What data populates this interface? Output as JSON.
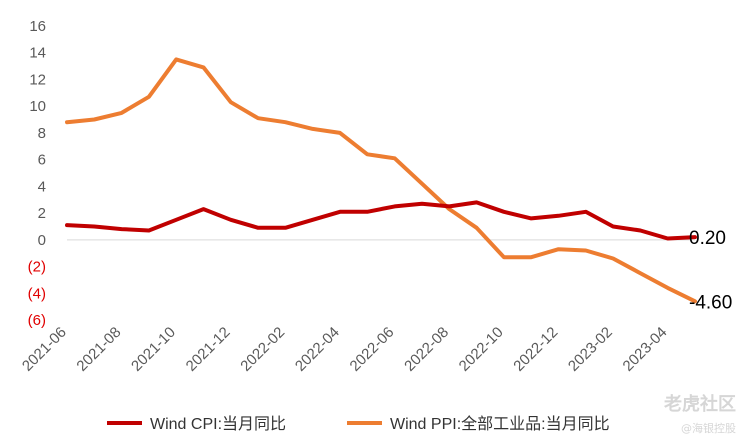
{
  "chart_data": {
    "type": "line",
    "title": "",
    "xlabel": "",
    "ylabel": "",
    "ylim": [
      -6,
      16
    ],
    "yticks": [
      16,
      14,
      12,
      10,
      8,
      6,
      4,
      2,
      0,
      -2,
      -4,
      -6
    ],
    "ytick_labels": [
      "16",
      "14",
      "12",
      "10",
      "8",
      "6",
      "4",
      "2",
      "0",
      "(2)",
      "(4)",
      "(6)"
    ],
    "negative_tick_color": "#e00000",
    "positive_tick_color": "#595959",
    "x": [
      "2021-06",
      "2021-07",
      "2021-08",
      "2021-09",
      "2021-10",
      "2021-11",
      "2021-12",
      "2022-01",
      "2022-02",
      "2022-03",
      "2022-04",
      "2022-05",
      "2022-06",
      "2022-07",
      "2022-08",
      "2022-09",
      "2022-10",
      "2022-11",
      "2022-12",
      "2023-01",
      "2023-02",
      "2023-03",
      "2023-04",
      "2023-05"
    ],
    "xtick_labels": [
      "2021-06",
      "2021-08",
      "2021-10",
      "2021-12",
      "2022-02",
      "2022-04",
      "2022-06",
      "2022-08",
      "2022-10",
      "2022-12",
      "2023-02",
      "2023-04"
    ],
    "series": [
      {
        "name": "Wind CPI:当月同比",
        "color": "#c00000",
        "values": [
          1.1,
          1.0,
          0.8,
          0.7,
          1.5,
          2.3,
          1.5,
          0.9,
          0.9,
          1.5,
          2.1,
          2.1,
          2.5,
          2.7,
          2.5,
          2.8,
          2.1,
          1.6,
          1.8,
          2.1,
          1.0,
          0.7,
          0.1,
          0.2
        ],
        "end_label": "0.20"
      },
      {
        "name": "Wind PPI:全部工业品:当月同比",
        "color": "#ed7d31",
        "values": [
          8.8,
          9.0,
          9.5,
          10.7,
          13.5,
          12.9,
          10.3,
          9.1,
          8.8,
          8.3,
          8.0,
          6.4,
          6.1,
          4.2,
          2.3,
          0.9,
          -1.3,
          -1.3,
          -0.7,
          -0.8,
          -1.4,
          -2.5,
          -3.6,
          -4.6
        ],
        "end_label": "-4.60"
      }
    ],
    "grid": false,
    "legend_position": "bottom"
  },
  "watermark": {
    "main": "老虎社区",
    "sub": "@海银控股"
  }
}
